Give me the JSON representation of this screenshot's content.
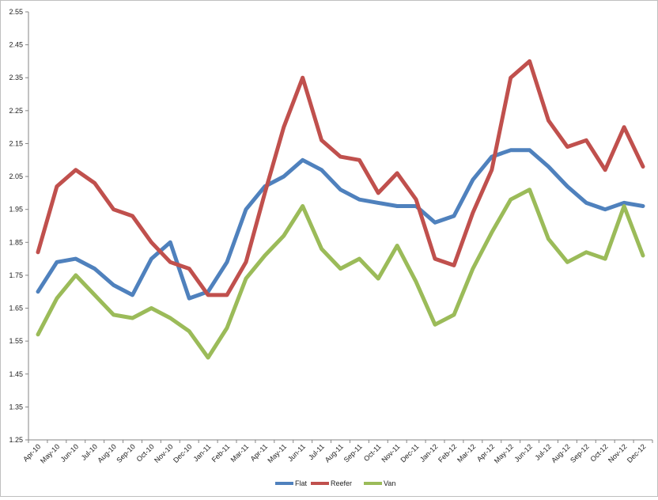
{
  "chart_data": {
    "type": "line",
    "title": "",
    "xlabel": "",
    "ylabel": "",
    "ylim": [
      1.25,
      2.55
    ],
    "yticks": [
      "1.25",
      "1.35",
      "1.45",
      "1.55",
      "1.65",
      "1.75",
      "1.85",
      "1.95",
      "2.05",
      "2.15",
      "2.25",
      "2.35",
      "2.45",
      "2.55"
    ],
    "grid": false,
    "legend_position": "bottom",
    "categories": [
      "Apr-10",
      "May-10",
      "Jun-10",
      "Jul-10",
      "Aug-10",
      "Sep-10",
      "Oct-10",
      "Nov-10",
      "Dec-10",
      "Jan-11",
      "Feb-11",
      "Mar-11",
      "Apr-11",
      "May-11",
      "Jun-11",
      "Jul-11",
      "Aug-11",
      "Sep-11",
      "Oct-11",
      "Nov-11",
      "Dec-11",
      "Jan-12",
      "Feb-12",
      "Mar-12",
      "Apr-12",
      "May-12",
      "Jun-12",
      "Jul-12",
      "Aug-12",
      "Sep-12",
      "Oct-12",
      "Nov-12",
      "Dec-12"
    ],
    "series": [
      {
        "name": "Flat",
        "color": "#4F81BD",
        "values": [
          1.7,
          1.79,
          1.8,
          1.77,
          1.72,
          1.69,
          1.8,
          1.85,
          1.68,
          1.7,
          1.79,
          1.95,
          2.02,
          2.05,
          2.1,
          2.07,
          2.01,
          1.98,
          1.97,
          1.96,
          1.96,
          1.91,
          1.93,
          2.04,
          2.11,
          2.13,
          2.13,
          2.08,
          2.02,
          1.97,
          1.95,
          1.97,
          1.96
        ]
      },
      {
        "name": "Reefer",
        "color": "#C0504D",
        "values": [
          1.82,
          2.02,
          2.07,
          2.03,
          1.95,
          1.93,
          1.85,
          1.79,
          1.77,
          1.69,
          1.69,
          1.79,
          2.0,
          2.2,
          2.35,
          2.16,
          2.11,
          2.1,
          2.0,
          2.06,
          1.98,
          1.8,
          1.78,
          1.94,
          2.07,
          2.35,
          2.4,
          2.22,
          2.14,
          2.16,
          2.07,
          2.2,
          2.08
        ]
      },
      {
        "name": "Van",
        "color": "#9BBB59",
        "values": [
          1.57,
          1.68,
          1.75,
          1.69,
          1.63,
          1.62,
          1.65,
          1.62,
          1.58,
          1.5,
          1.59,
          1.74,
          1.81,
          1.87,
          1.96,
          1.83,
          1.77,
          1.8,
          1.74,
          1.84,
          1.73,
          1.6,
          1.63,
          1.77,
          1.88,
          1.98,
          2.01,
          1.86,
          1.79,
          1.82,
          1.8,
          1.96,
          1.81
        ]
      }
    ]
  }
}
